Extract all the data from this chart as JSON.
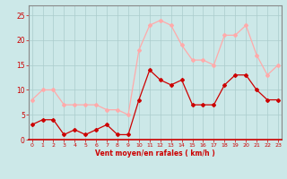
{
  "x": [
    0,
    1,
    2,
    3,
    4,
    5,
    6,
    7,
    8,
    9,
    10,
    11,
    12,
    13,
    14,
    15,
    16,
    17,
    18,
    19,
    20,
    21,
    22,
    23
  ],
  "wind_avg": [
    3,
    4,
    4,
    1,
    2,
    1,
    2,
    3,
    1,
    1,
    8,
    14,
    12,
    11,
    12,
    7,
    7,
    7,
    11,
    13,
    13,
    10,
    8,
    8
  ],
  "wind_gust": [
    8,
    10,
    10,
    7,
    7,
    7,
    7,
    6,
    6,
    5,
    18,
    23,
    24,
    23,
    19,
    16,
    16,
    15,
    21,
    21,
    23,
    17,
    13,
    15
  ],
  "avg_color": "#cc0000",
  "gust_color": "#ffaaaa",
  "bg_color": "#cce8e8",
  "grid_color": "#aacccc",
  "xlabel": "Vent moyen/en rafales ( km/h )",
  "ylim": [
    0,
    27
  ],
  "yticks": [
    0,
    5,
    10,
    15,
    20,
    25
  ],
  "tick_color": "#cc0000",
  "spine_color": "#888888",
  "bottom_spine_color": "#cc0000"
}
